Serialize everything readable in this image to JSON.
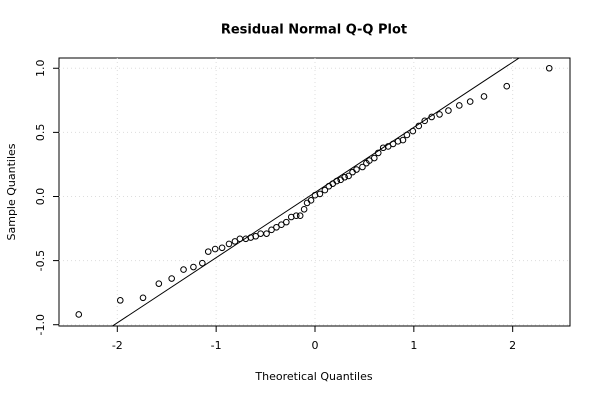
{
  "chart_data": {
    "type": "scatter",
    "title": "Residual Normal Q-Q Plot",
    "x_label": "Theoretical Quantiles",
    "y_label": "Sample Quantiles",
    "xlim": [
      -2.59,
      2.58
    ],
    "ylim": [
      -1.01,
      1.08
    ],
    "xticks": [
      -2,
      -1,
      0,
      1,
      2
    ],
    "yticks": [
      {
        "value": -1,
        "label": "-1.0"
      },
      {
        "value": -0.5,
        "label": "-0.5"
      },
      {
        "value": 0,
        "label": "0.0"
      },
      {
        "value": 0.5,
        "label": "0.5"
      },
      {
        "value": 1,
        "label": "1.0"
      }
    ],
    "grid": true,
    "color": "#000000",
    "reference_line": {
      "slope": 0.508,
      "intercept": 0.031
    },
    "x": [
      -2.39,
      -1.97,
      -1.74,
      -1.58,
      -1.45,
      -1.33,
      -1.23,
      -1.14,
      -1.08,
      -1.01,
      -0.94,
      -0.87,
      -0.81,
      -0.76,
      -0.7,
      -0.65,
      -0.6,
      -0.55,
      -0.49,
      -0.44,
      -0.39,
      -0.34,
      -0.29,
      -0.24,
      -0.19,
      -0.15,
      -0.11,
      -0.08,
      -0.04,
      0.0,
      0.05,
      0.1,
      0.14,
      0.18,
      0.22,
      0.26,
      0.3,
      0.34,
      0.38,
      0.42,
      0.48,
      0.52,
      0.55,
      0.6,
      0.64,
      0.69,
      0.74,
      0.79,
      0.84,
      0.89,
      0.93,
      0.99,
      1.05,
      1.11,
      1.18,
      1.26,
      1.35,
      1.46,
      1.57,
      1.71,
      1.94,
      2.37
    ],
    "values": [
      -0.92,
      -0.81,
      -0.79,
      -0.68,
      -0.64,
      -0.57,
      -0.55,
      -0.52,
      -0.43,
      -0.41,
      -0.4,
      -0.37,
      -0.35,
      -0.33,
      -0.33,
      -0.32,
      -0.31,
      -0.29,
      -0.29,
      -0.26,
      -0.24,
      -0.22,
      -0.2,
      -0.16,
      -0.15,
      -0.15,
      -0.1,
      -0.05,
      -0.03,
      0.01,
      0.02,
      0.05,
      0.08,
      0.1,
      0.12,
      0.13,
      0.15,
      0.16,
      0.19,
      0.21,
      0.23,
      0.26,
      0.28,
      0.3,
      0.34,
      0.38,
      0.39,
      0.41,
      0.43,
      0.44,
      0.48,
      0.51,
      0.55,
      0.59,
      0.62,
      0.64,
      0.67,
      0.71,
      0.74,
      0.78,
      0.86,
      1.0
    ]
  }
}
